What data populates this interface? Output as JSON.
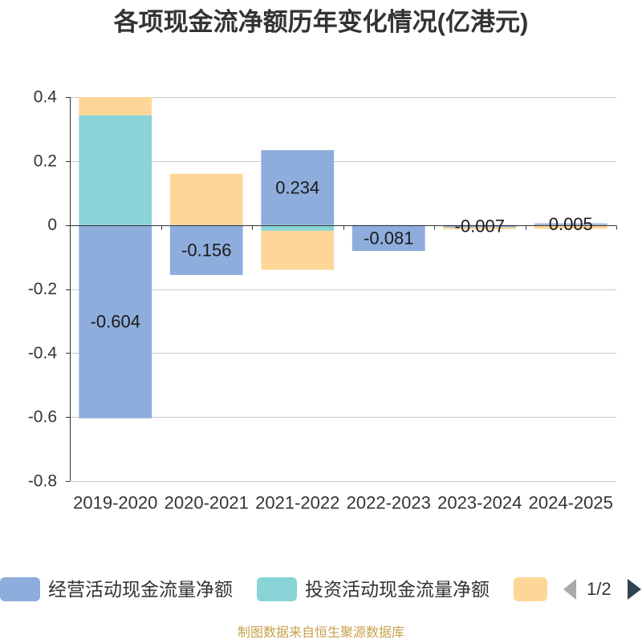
{
  "chart_data": {
    "type": "bar",
    "stacked": true,
    "title": "各项现金流净额历年变化情况(亿港元)",
    "categories": [
      "2019-2020",
      "2020-2021",
      "2021-2022",
      "2022-2023",
      "2023-2024",
      "2024-2025"
    ],
    "series": [
      {
        "name": "经营活动现金流量净额",
        "color": "#8eaddc",
        "values": [
          -0.604,
          -0.156,
          0.234,
          -0.081,
          -0.007,
          0.005
        ],
        "show_labels": true
      },
      {
        "name": "投资活动现金流量净额",
        "color": "#88d4d6",
        "values": [
          0.343,
          0,
          -0.018,
          0,
          0,
          0
        ]
      },
      {
        "color": "#fed798",
        "values": [
          0.057,
          0.16,
          -0.122,
          0,
          -0.006,
          -0.012
        ]
      }
    ],
    "ylim": [
      -0.8,
      0.4
    ],
    "y_tick_labels": [
      "0.4",
      "0.2",
      "0",
      "-0.2",
      "-0.4",
      "-0.6",
      "-0.8"
    ],
    "grid": true,
    "legend": "bottom"
  },
  "legend_pager": {
    "page_label": "1/2",
    "prev_icon": "triangle-left-icon",
    "next_icon": "triangle-right-icon"
  },
  "footer": "制图数据来自恒生聚源数据库"
}
